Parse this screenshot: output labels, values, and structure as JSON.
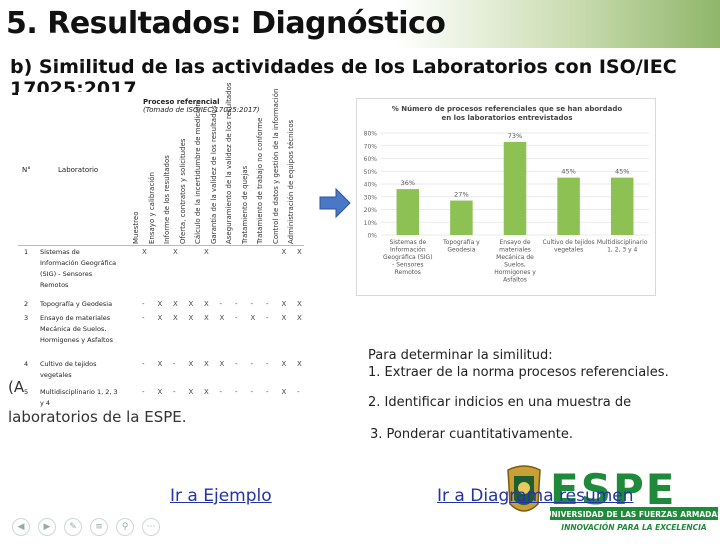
{
  "header": {
    "title": "5. Resultados: Diagnóstico"
  },
  "subtitle": "b) Similitud de las actividades de los Laboratorios con ISO/IEC 17025:2017",
  "table": {
    "top_label": "Proceso referencial",
    "top_label_ref": "(Tomado de ISO/IEC 17025:2017)",
    "col_no": "N°",
    "col_lab": "Laboratorio",
    "columns": [
      "Muestreo",
      "Ensayo y calibración",
      "Informe de los resultados",
      "Oferta, contratos y solicitudes",
      "Cálculo de la incertidumbre de medición",
      "Garantía de la validez de los resultados",
      "Aseguramiento de la validez de los resultados",
      "Tratamiento de quejas",
      "Tratamiento de trabajo no conforme",
      "Control de datos y gestión de la información",
      "Administración de equipos técnicos"
    ],
    "rows": [
      {
        "n": "1",
        "lab": [
          "Sistemas de",
          "Información Geográfica",
          "(SIG) - Sensores",
          "Remotos"
        ]
      },
      {
        "n": "2",
        "lab": [
          "Topografía y Geodesia"
        ]
      },
      {
        "n": "3",
        "lab": [
          "Ensayo de materiales",
          "Mecánica de Suelos,",
          "Hormigones y Asfaltos"
        ]
      },
      {
        "n": "4",
        "lab": [
          "Cultivo de tejidos",
          "vegetales"
        ]
      },
      {
        "n": "5",
        "lab": [
          "Multidisciplinario 1, 2, 3",
          "y 4"
        ]
      }
    ]
  },
  "captions": {
    "partial_a": "(A",
    "partial_b": "laboratorios de la ESPE."
  },
  "chart_data": {
    "type": "bar",
    "title": "% Número de procesos referenciales que se han abordado en los laboratorios entrevistados",
    "categories": [
      "Sistemas de Información Geográfica (SIG) - Sensores Remotos",
      "Topografía y Geodesia",
      "Ensayo de materiales Mecánica de Suelos, Hormigones y Asfaltos",
      "Cultivo de tejidos vegetales",
      "Multidisciplinario 1, 2, 3 y 4"
    ],
    "category_lines": [
      [
        "Sistemas de",
        "Información",
        "Geográfica (SIG)",
        "- Sensores",
        "Remotos"
      ],
      [
        "Topografía y",
        "Geodesia"
      ],
      [
        "Ensayo de",
        "materiales",
        "Mecánica de",
        "Suelos,",
        "Hormigones y",
        "Asfaltos"
      ],
      [
        "Cultivo de tejidos",
        "vegetales"
      ],
      [
        "Multidisciplinario",
        "1, 2, 3 y 4"
      ]
    ],
    "values": [
      36,
      27,
      73,
      45,
      45
    ],
    "value_labels": [
      "36%",
      "27%",
      "73%",
      "45%",
      "45%"
    ],
    "ylim": [
      0,
      80
    ],
    "yticks": [
      "0%",
      "10%",
      "20%",
      "30%",
      "40%",
      "50%",
      "60%",
      "70%",
      "80%"
    ],
    "bar_color": "#8dc153",
    "grid": true
  },
  "steps": {
    "intro": "Para determinar la similitud:",
    "s1": "1. Extraer de la norma procesos referenciales.",
    "s2": "2. Identificar indicios en una muestra de",
    "s3": "3. Ponderar cuantitativamente."
  },
  "links": {
    "example": "Ir a Ejemplo",
    "diagram": "Ir a Diagrama resumen"
  },
  "logo": {
    "name": "ESPE",
    "line1": "UNIVERSIDAD DE LAS FUERZAS ARMADAS",
    "line2": "INNOVACIÓN PARA LA EXCELENCIA",
    "color": "#1f8a3a"
  }
}
